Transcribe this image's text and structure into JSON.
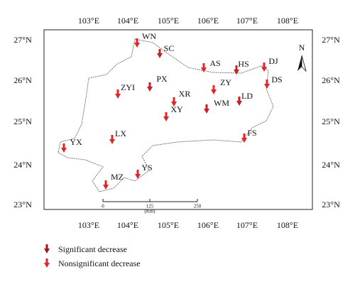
{
  "axes": {
    "top": [
      "103°E",
      "104°E",
      "105°E",
      "106°E",
      "107°E",
      "108°E"
    ],
    "bottom": [
      "103°E",
      "104°E",
      "105°E",
      "106°E",
      "107°E",
      "108°E"
    ],
    "left": [
      "27°N",
      "26°N",
      "25°N",
      "24°N",
      "23°N"
    ],
    "right": [
      "27°N",
      "26°N",
      "25°N",
      "24°N",
      "23°N"
    ]
  },
  "north": "N",
  "stations": [
    {
      "label": "WN",
      "color": "#e0262b"
    },
    {
      "label": "SC",
      "color": "#c62026"
    },
    {
      "label": "AS",
      "color": "#e0262b"
    },
    {
      "label": "HS",
      "color": "#c62026"
    },
    {
      "label": "DJ",
      "color": "#e0262b"
    },
    {
      "label": "DS",
      "color": "#e0262b"
    },
    {
      "label": "PX",
      "color": "#c62026"
    },
    {
      "label": "ZY",
      "color": "#e0262b"
    },
    {
      "label": "ZYI",
      "color": "#e0262b"
    },
    {
      "label": "XR",
      "color": "#e0262b"
    },
    {
      "label": "LD",
      "color": "#c62026"
    },
    {
      "label": "WM",
      "color": "#c62026"
    },
    {
      "label": "XY",
      "color": "#e0262b"
    },
    {
      "label": "FS",
      "color": "#e0262b"
    },
    {
      "label": "LX",
      "color": "#e0262b"
    },
    {
      "label": "YX",
      "color": "#e0262b"
    },
    {
      "label": "YS",
      "color": "#e0262b"
    },
    {
      "label": "MZ",
      "color": "#e0262b"
    }
  ],
  "scale_bar": {
    "labels": [
      "0",
      "125",
      "250"
    ],
    "unit": "(Km)"
  },
  "legend": [
    {
      "label": "Significant decrease",
      "color": "#a3161b"
    },
    {
      "label": "Nonsignificant decrease",
      "color": "#e0262b"
    }
  ]
}
